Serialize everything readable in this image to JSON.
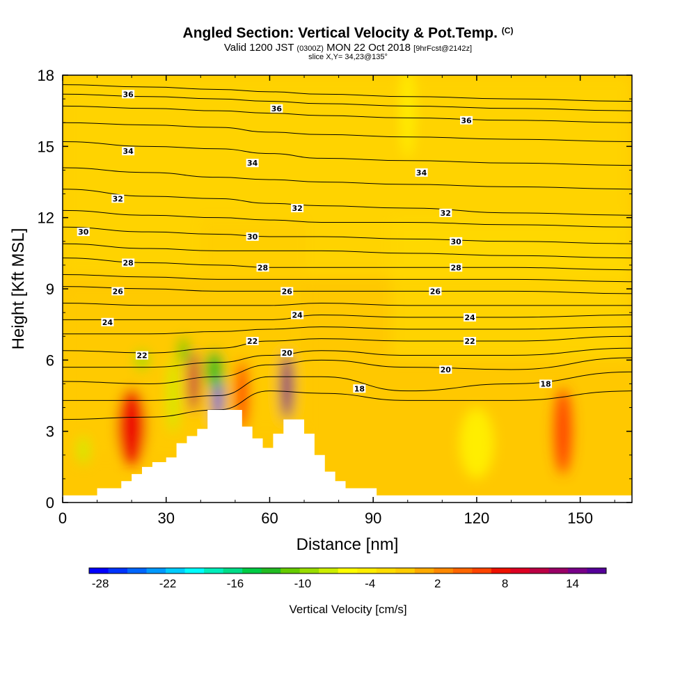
{
  "title": {
    "main": "Angled Section: Vertical Velocity & Pot.Temp.",
    "main_suffix": "(C)",
    "valid_prefix": "Valid 1200 JST",
    "valid_z": "(0300Z)",
    "valid_date": "MON 22 Oct 2018",
    "valid_fcst": "[9hrFcst@2142z]",
    "slice": "slice X,Y= 34,23@135°"
  },
  "colorbar_label": "Vertical Velocity [cm/s]",
  "chart_data": {
    "type": "heatmap",
    "xlabel": "Distance [nm]",
    "ylabel": "Height [Kft MSL]",
    "xlim": [
      0,
      165
    ],
    "ylim": [
      0,
      18
    ],
    "xticks": [
      "0",
      "30",
      "60",
      "90",
      "120",
      "150"
    ],
    "xtick_values": [
      0,
      30,
      60,
      90,
      120,
      150
    ],
    "yticks": [
      "0",
      "3",
      "6",
      "9",
      "12",
      "15",
      "18"
    ],
    "ytick_values": [
      0,
      3,
      6,
      9,
      12,
      15,
      18
    ],
    "colorbar": {
      "ticks": [
        "-28",
        "-22",
        "-16",
        "-10",
        "-4",
        "2",
        "8",
        "14"
      ],
      "tick_values": [
        -28,
        -22,
        -16,
        -10,
        -4,
        2,
        8,
        14
      ],
      "range": [
        -29,
        17
      ],
      "colors": [
        "#0000ff",
        "#0033ff",
        "#0066ff",
        "#0099ff",
        "#00ccff",
        "#00ffff",
        "#00eebb",
        "#00dd88",
        "#00cc44",
        "#22bb22",
        "#66cc00",
        "#99dd00",
        "#ccee00",
        "#ffff00",
        "#ffee00",
        "#ffdd00",
        "#ffcc00",
        "#ffaa00",
        "#ff8800",
        "#ff6600",
        "#ff4400",
        "#ee1100",
        "#dd0022",
        "#bb0044",
        "#990066",
        "#770088",
        "#550099"
      ]
    },
    "terrain_profile": [
      [
        0,
        0.3
      ],
      [
        10,
        0.3
      ],
      [
        10,
        0.6
      ],
      [
        17,
        0.6
      ],
      [
        17,
        0.9
      ],
      [
        20,
        0.9
      ],
      [
        20,
        1.2
      ],
      [
        23,
        1.2
      ],
      [
        23,
        1.5
      ],
      [
        26,
        1.5
      ],
      [
        26,
        1.7
      ],
      [
        30,
        1.7
      ],
      [
        30,
        1.9
      ],
      [
        33,
        1.9
      ],
      [
        33,
        2.5
      ],
      [
        36,
        2.5
      ],
      [
        36,
        2.8
      ],
      [
        39,
        2.8
      ],
      [
        39,
        3.1
      ],
      [
        42,
        3.1
      ],
      [
        42,
        3.9
      ],
      [
        52,
        3.9
      ],
      [
        52,
        3.2
      ],
      [
        55,
        3.2
      ],
      [
        55,
        2.7
      ],
      [
        58,
        2.7
      ],
      [
        58,
        2.3
      ],
      [
        61,
        2.3
      ],
      [
        61,
        2.9
      ],
      [
        64,
        2.9
      ],
      [
        64,
        3.5
      ],
      [
        70,
        3.5
      ],
      [
        70,
        2.9
      ],
      [
        73,
        2.9
      ],
      [
        73,
        2.0
      ],
      [
        76,
        2.0
      ],
      [
        76,
        1.3
      ],
      [
        79,
        1.3
      ],
      [
        79,
        0.9
      ],
      [
        82,
        0.9
      ],
      [
        82,
        0.6
      ],
      [
        91,
        0.6
      ],
      [
        91,
        0.3
      ],
      [
        165,
        0.3
      ]
    ],
    "field_features": [
      {
        "x": 38,
        "y": 5.1,
        "value": 11,
        "rx": 1.5,
        "ry": 1.3
      },
      {
        "x": 45,
        "y": 4.6,
        "value": -28,
        "rx": 1.4,
        "ry": 1.3
      },
      {
        "x": 44,
        "y": 5.6,
        "value": -13,
        "rx": 2.5,
        "ry": 0.8
      },
      {
        "x": 35,
        "y": 6.4,
        "value": -11,
        "rx": 1.5,
        "ry": 0.6
      },
      {
        "x": 32,
        "y": 4.5,
        "value": -7,
        "rx": 1.5,
        "ry": 1.6
      },
      {
        "x": 52,
        "y": 4.5,
        "value": 7,
        "rx": 2.0,
        "ry": 1.5
      },
      {
        "x": 65,
        "y": 4.9,
        "value": 15,
        "rx": 1.7,
        "ry": 1.4
      },
      {
        "x": 20,
        "y": 3.2,
        "value": 8,
        "rx": 4.0,
        "ry": 1.6
      },
      {
        "x": 6,
        "y": 2.2,
        "value": -8,
        "rx": 1.5,
        "ry": 0.6
      },
      {
        "x": 23,
        "y": 6.0,
        "value": -9,
        "rx": 2.0,
        "ry": 0.4
      },
      {
        "x": 145,
        "y": 3.0,
        "value": 7,
        "rx": 2.5,
        "ry": 1.8
      },
      {
        "x": 120,
        "y": 2.5,
        "value": -4,
        "rx": 5.0,
        "ry": 1.5
      },
      {
        "x": 100,
        "y": 16.5,
        "value": -4,
        "rx": 2.0,
        "ry": 2.0
      }
    ],
    "contour_labels": [
      {
        "text": "36",
        "x": 19,
        "y": 17.2
      },
      {
        "text": "36",
        "x": 62,
        "y": 16.6
      },
      {
        "text": "36",
        "x": 117,
        "y": 16.1
      },
      {
        "text": "34",
        "x": 19,
        "y": 14.8
      },
      {
        "text": "34",
        "x": 55,
        "y": 14.3
      },
      {
        "text": "34",
        "x": 104,
        "y": 13.9
      },
      {
        "text": "32",
        "x": 16,
        "y": 12.8
      },
      {
        "text": "32",
        "x": 68,
        "y": 12.4
      },
      {
        "text": "32",
        "x": 111,
        "y": 12.2
      },
      {
        "text": "30",
        "x": 6,
        "y": 11.4
      },
      {
        "text": "30",
        "x": 55,
        "y": 11.2
      },
      {
        "text": "30",
        "x": 114,
        "y": 11.0
      },
      {
        "text": "28",
        "x": 19,
        "y": 10.1
      },
      {
        "text": "28",
        "x": 58,
        "y": 9.9
      },
      {
        "text": "28",
        "x": 114,
        "y": 9.9
      },
      {
        "text": "26",
        "x": 16,
        "y": 8.9
      },
      {
        "text": "26",
        "x": 65,
        "y": 8.9
      },
      {
        "text": "26",
        "x": 108,
        "y": 8.9
      },
      {
        "text": "24",
        "x": 13,
        "y": 7.6
      },
      {
        "text": "24",
        "x": 68,
        "y": 7.9
      },
      {
        "text": "24",
        "x": 118,
        "y": 7.8
      },
      {
        "text": "22",
        "x": 23,
        "y": 6.2
      },
      {
        "text": "22",
        "x": 55,
        "y": 6.8
      },
      {
        "text": "22",
        "x": 118,
        "y": 6.8
      },
      {
        "text": "20",
        "x": 65,
        "y": 6.3
      },
      {
        "text": "20",
        "x": 111,
        "y": 5.6
      },
      {
        "text": "18",
        "x": 86,
        "y": 4.8
      },
      {
        "text": "18",
        "x": 140,
        "y": 5.0
      }
    ],
    "isentropes": [
      {
        "level": 38,
        "y": [
          17.6,
          17.5,
          17.4,
          17.3,
          17.2,
          17.1,
          17.0,
          16.9
        ]
      },
      {
        "level": 37,
        "y": [
          17.2,
          17.1,
          17.0,
          16.9,
          16.8,
          16.7,
          16.6,
          16.5
        ]
      },
      {
        "level": 36,
        "y": [
          16.7,
          16.6,
          16.5,
          16.4,
          16.3,
          16.2,
          16.1,
          16.0
        ]
      },
      {
        "level": 35,
        "y": [
          16.0,
          15.9,
          15.8,
          15.6,
          15.5,
          15.4,
          15.3,
          15.2
        ]
      },
      {
        "level": 34,
        "y": [
          15.2,
          15.0,
          14.9,
          14.7,
          14.5,
          14.4,
          14.3,
          14.2
        ]
      },
      {
        "level": 33,
        "y": [
          14.1,
          13.9,
          13.7,
          13.6,
          13.5,
          13.4,
          13.3,
          13.2
        ]
      },
      {
        "level": 32,
        "y": [
          13.2,
          12.9,
          12.8,
          12.6,
          12.5,
          12.4,
          12.2,
          12.1
        ]
      },
      {
        "level": 31,
        "y": [
          12.3,
          12.1,
          12.0,
          11.9,
          11.8,
          11.8,
          11.7,
          11.6
        ]
      },
      {
        "level": 30,
        "y": [
          11.6,
          11.4,
          11.3,
          11.2,
          11.2,
          11.1,
          11.0,
          10.9
        ]
      },
      {
        "level": 29,
        "y": [
          10.9,
          10.7,
          10.6,
          10.6,
          10.6,
          10.5,
          10.4,
          10.3
        ]
      },
      {
        "level": 28,
        "y": [
          10.3,
          10.1,
          10.0,
          9.9,
          9.9,
          9.9,
          9.9,
          9.8
        ]
      },
      {
        "level": 27,
        "y": [
          9.6,
          9.5,
          9.4,
          9.4,
          9.4,
          9.4,
          9.4,
          9.3
        ]
      },
      {
        "level": 26,
        "y": [
          9.1,
          9.0,
          8.9,
          8.9,
          8.9,
          8.9,
          8.9,
          8.8
        ]
      },
      {
        "level": 25,
        "y": [
          8.4,
          8.3,
          8.3,
          8.3,
          8.4,
          8.3,
          8.3,
          8.3
        ]
      },
      {
        "level": 24,
        "y": [
          7.7,
          7.7,
          7.7,
          7.7,
          7.9,
          7.8,
          7.8,
          7.9
        ]
      },
      {
        "level": 23,
        "y": [
          7.1,
          7.1,
          7.2,
          7.3,
          7.4,
          7.3,
          7.3,
          7.4
        ]
      },
      {
        "level": 22,
        "y": [
          6.4,
          6.3,
          6.5,
          6.8,
          6.9,
          6.8,
          6.8,
          7.0
        ]
      },
      {
        "level": 21,
        "y": [
          5.7,
          5.7,
          5.9,
          6.2,
          6.4,
          6.2,
          6.2,
          6.5
        ]
      },
      {
        "level": 20,
        "y": [
          5.1,
          5.0,
          5.3,
          5.8,
          6.0,
          5.7,
          5.6,
          6.1
        ]
      },
      {
        "level": 19,
        "y": [
          4.3,
          4.3,
          4.5,
          5.3,
          5.3,
          4.7,
          5.0,
          5.5
        ]
      },
      {
        "level": 18,
        "y": [
          3.5,
          3.6,
          3.9,
          4.7,
          4.6,
          4.3,
          4.3,
          4.7
        ]
      }
    ],
    "isentrope_x": [
      0,
      25,
      45,
      60,
      75,
      100,
      130,
      165
    ]
  }
}
